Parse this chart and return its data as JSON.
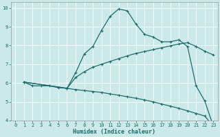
{
  "xlabel": "Humidex (Indice chaleur)",
  "bg_color": "#cce9e9",
  "grid_color": "#ffffff",
  "line_color": "#1a6b6b",
  "xlim": [
    -0.5,
    23.5
  ],
  "ylim": [
    4,
    10.3
  ],
  "xticks": [
    0,
    1,
    2,
    3,
    4,
    5,
    6,
    7,
    8,
    9,
    10,
    11,
    12,
    13,
    14,
    15,
    16,
    17,
    18,
    19,
    20,
    21,
    22,
    23
  ],
  "yticks": [
    4,
    5,
    6,
    7,
    8,
    9,
    10
  ],
  "line1_x": [
    1,
    2,
    3,
    4,
    5,
    6,
    7,
    8,
    9,
    10,
    11,
    12,
    13,
    14,
    15,
    16,
    17,
    18,
    19,
    20,
    21,
    22,
    23
  ],
  "line1_y": [
    6.05,
    5.85,
    5.85,
    5.85,
    5.75,
    5.72,
    6.55,
    7.55,
    7.95,
    8.8,
    9.55,
    9.95,
    9.85,
    9.15,
    8.6,
    8.45,
    8.2,
    8.2,
    8.3,
    7.95,
    5.85,
    5.05,
    3.7
  ],
  "line2_x": [
    1,
    6,
    7,
    8,
    9,
    10,
    11,
    12,
    13,
    14,
    15,
    16,
    17,
    18,
    19,
    20,
    21,
    22,
    23
  ],
  "line2_y": [
    6.05,
    5.72,
    6.3,
    6.6,
    6.85,
    7.0,
    7.15,
    7.3,
    7.45,
    7.58,
    7.68,
    7.78,
    7.88,
    7.98,
    8.08,
    8.15,
    7.95,
    7.7,
    7.5
  ],
  "line3_x": [
    1,
    6,
    7,
    8,
    9,
    10,
    11,
    12,
    13,
    14,
    15,
    16,
    17,
    18,
    19,
    20,
    21,
    22,
    23
  ],
  "line3_y": [
    6.05,
    5.72,
    5.65,
    5.6,
    5.55,
    5.5,
    5.42,
    5.35,
    5.27,
    5.19,
    5.1,
    5.0,
    4.88,
    4.77,
    4.65,
    4.52,
    4.38,
    4.24,
    3.7
  ]
}
